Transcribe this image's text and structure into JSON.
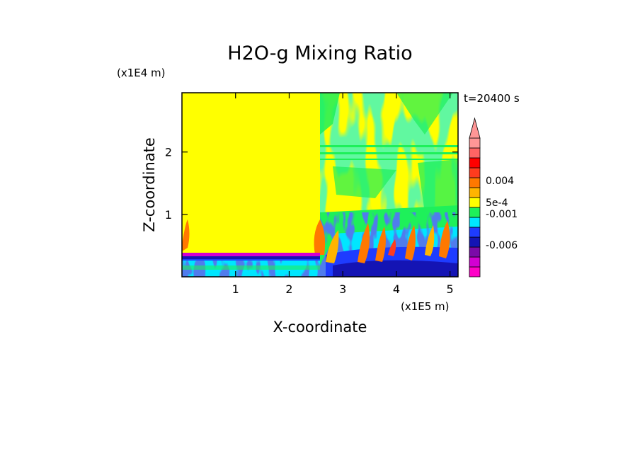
{
  "chart_data": {
    "type": "heatmap",
    "title": "H2O-g Mixing Ratio",
    "xlabel": "X-coordinate",
    "ylabel": "Z-coordinate",
    "x_scale_label": "(x1E5 m)",
    "y_scale_label": "(x1E4 m)",
    "time_label": "t=20400 s",
    "xlim": [
      0,
      5.15
    ],
    "ylim": [
      0,
      2.95
    ],
    "x_ticks": [
      1,
      2,
      3,
      4,
      5
    ],
    "y_ticks": [
      1,
      2
    ],
    "x_tick_labels": [
      "1",
      "2",
      "3",
      "4",
      "5"
    ],
    "y_tick_labels": [
      "1",
      "2"
    ],
    "colorbar": {
      "colors": [
        "#ff00c8",
        "#d200d2",
        "#7a0aa8",
        "#1414b4",
        "#1e3cff",
        "#00e6ff",
        "#1ef05a",
        "#ffff00",
        "#ffb400",
        "#ff7800",
        "#ff3c1e",
        "#ff0000",
        "#ff6464",
        "#ff9696"
      ],
      "extend_top_color": "#ff9696",
      "labels": [
        {
          "text": "-0.006",
          "at": 0.23
        },
        {
          "text": "-0.001",
          "at": 0.455
        },
        {
          "text": "5e-4",
          "at": 0.535
        },
        {
          "text": "0.004",
          "at": 0.695
        }
      ]
    }
  }
}
